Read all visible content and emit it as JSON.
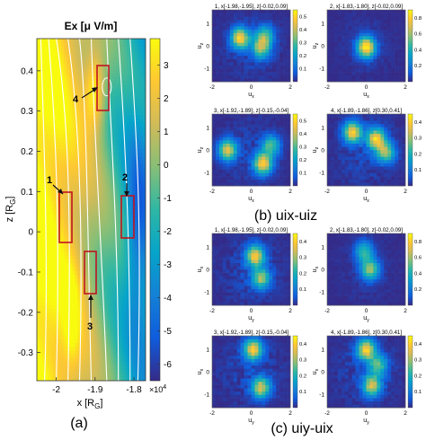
{
  "main_panel": {
    "title": "Ex [μ V/m]",
    "xlabel": "x [R",
    "xlabel_sub": "G",
    "xlabel_tail": "]",
    "ylabel": "z [R",
    "ylabel_sub": "G",
    "ylabel_tail": "]",
    "xticks": [
      "-2",
      "-1.9",
      "-1.8"
    ],
    "yticks": [
      "0.4",
      "0.3",
      "0.2",
      "0.1",
      "0",
      "-0.1",
      "-0.2",
      "-0.3"
    ],
    "colorbar_ticks": [
      "3",
      "2",
      "1",
      "0",
      "-1",
      "-2",
      "-3",
      "-4",
      "-5",
      "-6"
    ],
    "colorbar_multiplier": "×10",
    "colorbar_exponent": "4",
    "box_labels": [
      "1",
      "2",
      "3",
      "4"
    ],
    "caption": "(a)"
  },
  "captions": {
    "b": "(b) uix-uiz",
    "c": "(c) uiy-uix"
  },
  "small_panels": [
    {
      "title": "1, x[-1.98,-1.95], z[-0.02,0.09]",
      "xlabel": "u",
      "xsub": "x",
      "ylabel": "u",
      "ysub": "z",
      "cbar": [
        "0.5",
        "0.4",
        "0.3",
        "0.2",
        "0.1"
      ]
    },
    {
      "title": "2, x[-1.83,-1.80], z[-0.02,0.09]",
      "xlabel": "u",
      "xsub": "x",
      "ylabel": "u",
      "ysub": "z",
      "cbar": [
        "0.8",
        "0.6",
        "0.4",
        "0.2"
      ]
    },
    {
      "title": "3, x[-1.92,-1.89], z[-0.15,-0.04]",
      "xlabel": "u",
      "xsub": "x",
      "ylabel": "u",
      "ysub": "z",
      "cbar": [
        "0.5",
        "0.4",
        "0.3",
        "0.2",
        "0.1"
      ]
    },
    {
      "title": "4, x[-1.89,-1.86], z[0.30,0.41]",
      "xlabel": "u",
      "xsub": "x",
      "ylabel": "u",
      "ysub": "z",
      "cbar": [
        "0.4",
        "0.3",
        "0.2",
        "0.1"
      ]
    },
    {
      "title": "1, x[-1.98,-1.95], z[-0.02,0.09]",
      "xlabel": "u",
      "xsub": "y",
      "ylabel": "u",
      "ysub": "x",
      "cbar": [
        "0.4",
        "0.3",
        "0.2",
        "0.1"
      ]
    },
    {
      "title": "2, x[-1.83,-1.80], z[-0.02,0.09]",
      "xlabel": "u",
      "xsub": "y",
      "ylabel": "u",
      "ysub": "x",
      "cbar": [
        "0.8",
        "0.6",
        "0.4",
        "0.2"
      ]
    },
    {
      "title": "3, x[-1.92,-1.89], z[-0.15,-0.04]",
      "xlabel": "u",
      "xsub": "y",
      "ylabel": "u",
      "ysub": "x",
      "cbar": [
        "0.4",
        "0.3",
        "0.2",
        "0.1"
      ]
    },
    {
      "title": "4, x[-1.89,-1.86], z[0.30,0.41]",
      "xlabel": "u",
      "xsub": "y",
      "ylabel": "u",
      "ysub": "x",
      "cbar": [
        "0.4",
        "0.3",
        "0.2",
        "0.1"
      ]
    }
  ],
  "small_ticks": {
    "x": [
      "-2",
      "0",
      "2"
    ],
    "y": [
      "1",
      "0",
      "-1"
    ]
  },
  "colors": {
    "parula": [
      "#352a87",
      "#0f5cdd",
      "#1481d6",
      "#06a4ca",
      "#2eb7a4",
      "#87bf77",
      "#d1bb59",
      "#fec832",
      "#f9fb0e"
    ],
    "box": "#c0151e",
    "streamline": "#ffffff"
  },
  "chart_data": [
    {
      "type": "heatmap",
      "title": "Ex [μ V/m]",
      "xlabel": "x [RG]",
      "ylabel": "z [RG]",
      "xlim": [
        -2.05,
        -1.77
      ],
      "ylim": [
        -0.37,
        0.48
      ],
      "clim": [
        -65000,
        38000
      ],
      "colorbar_scale": "×10^4",
      "annotations": [
        {
          "label": "1",
          "x_range": [
            -1.98,
            -1.95
          ],
          "z_range": [
            -0.02,
            0.09
          ]
        },
        {
          "label": "2",
          "x_range": [
            -1.83,
            -1.8
          ],
          "z_range": [
            -0.02,
            0.09
          ]
        },
        {
          "label": "3",
          "x_range": [
            -1.92,
            -1.89
          ],
          "z_range": [
            -0.15,
            -0.04
          ]
        },
        {
          "label": "4",
          "x_range": [
            -1.89,
            -1.86
          ],
          "z_range": [
            0.3,
            0.41
          ]
        }
      ]
    },
    {
      "type": "heatmap",
      "group": "(b) uix-uiz",
      "panel": 1,
      "xlabel": "ux",
      "ylabel": "uz",
      "xlim": [
        -2,
        2
      ],
      "ylim": [
        -1.6,
        1.6
      ],
      "clim": [
        0,
        0.55
      ],
      "peaks": [
        {
          "x": -0.55,
          "y": 0.35,
          "v": 0.5
        },
        {
          "x": 0.5,
          "y": -0.1,
          "v": 0.35
        },
        {
          "x": 0.7,
          "y": 0.45,
          "v": 0.3
        }
      ]
    },
    {
      "type": "heatmap",
      "group": "(b) uix-uiz",
      "panel": 2,
      "xlabel": "ux",
      "ylabel": "uz",
      "xlim": [
        -2,
        2
      ],
      "ylim": [
        -1.6,
        1.6
      ],
      "clim": [
        0,
        0.9
      ],
      "peaks": [
        {
          "x": 0.0,
          "y": -0.05,
          "v": 0.9
        }
      ]
    },
    {
      "type": "heatmap",
      "group": "(b) uix-uiz",
      "panel": 3,
      "xlabel": "ux",
      "ylabel": "uz",
      "xlim": [
        -2,
        2
      ],
      "ylim": [
        -1.6,
        1.6
      ],
      "clim": [
        0,
        0.55
      ],
      "peaks": [
        {
          "x": -1.2,
          "y": 0.0,
          "v": 0.45
        },
        {
          "x": 0.6,
          "y": -0.6,
          "v": 0.5
        },
        {
          "x": 1.0,
          "y": 0.2,
          "v": 0.3
        }
      ]
    },
    {
      "type": "heatmap",
      "group": "(b) uix-uiz",
      "panel": 4,
      "xlabel": "ux",
      "ylabel": "uz",
      "xlim": [
        -2,
        2
      ],
      "ylim": [
        -1.6,
        1.6
      ],
      "clim": [
        0,
        0.45
      ],
      "peaks": [
        {
          "x": -0.7,
          "y": 0.8,
          "v": 0.4
        },
        {
          "x": 0.5,
          "y": 0.5,
          "v": 0.4
        },
        {
          "x": 1.0,
          "y": -0.1,
          "v": 0.3
        }
      ]
    },
    {
      "type": "heatmap",
      "group": "(c) uiy-uix",
      "panel": 1,
      "xlabel": "uy",
      "ylabel": "ux",
      "xlim": [
        -2,
        2
      ],
      "ylim": [
        -1.6,
        1.6
      ],
      "clim": [
        0,
        0.45
      ],
      "peaks": [
        {
          "x": 0.2,
          "y": 0.6,
          "v": 0.4
        },
        {
          "x": 0.5,
          "y": -0.4,
          "v": 0.3
        }
      ]
    },
    {
      "type": "heatmap",
      "group": "(c) uiy-uix",
      "panel": 2,
      "xlabel": "uy",
      "ylabel": "ux",
      "xlim": [
        -2,
        2
      ],
      "ylim": [
        -1.6,
        1.6
      ],
      "clim": [
        0,
        0.9
      ],
      "peaks": [
        {
          "x": 0.2,
          "y": 0.0,
          "v": 0.6
        },
        {
          "x": -0.1,
          "y": 0.8,
          "v": 0.45
        }
      ]
    },
    {
      "type": "heatmap",
      "group": "(c) uiy-uix",
      "panel": 3,
      "xlabel": "uy",
      "ylabel": "ux",
      "xlim": [
        -2,
        2
      ],
      "ylim": [
        -1.6,
        1.6
      ],
      "clim": [
        0,
        0.45
      ],
      "peaks": [
        {
          "x": 0.1,
          "y": 1.0,
          "v": 0.4
        },
        {
          "x": 0.5,
          "y": -0.7,
          "v": 0.35
        }
      ]
    },
    {
      "type": "heatmap",
      "group": "(c) uiy-uix",
      "panel": 4,
      "xlabel": "uy",
      "ylabel": "ux",
      "xlim": [
        -2,
        2
      ],
      "ylim": [
        -1.6,
        1.6
      ],
      "clim": [
        0,
        0.45
      ],
      "peaks": [
        {
          "x": 0.0,
          "y": 1.0,
          "v": 0.4
        },
        {
          "x": 0.3,
          "y": -0.6,
          "v": 0.35
        },
        {
          "x": 0.6,
          "y": 0.3,
          "v": 0.25
        }
      ]
    }
  ]
}
